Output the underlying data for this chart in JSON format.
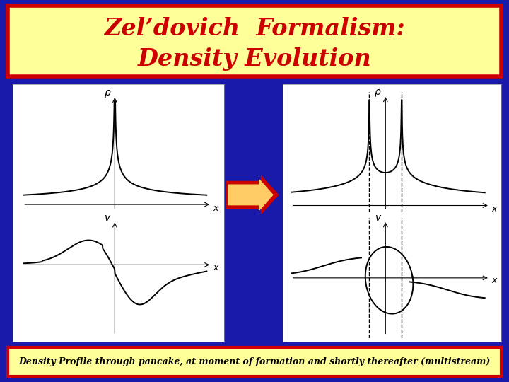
{
  "title_line1": "Zel’dovich  Formalism:",
  "title_line2": "Density Evolution",
  "caption": "Density Profile through pancake, at moment of formation and shortly thereafter (multistream)",
  "bg_outer": "#1a1aaa",
  "bg_title": "#ffff99",
  "bg_caption": "#ffff99",
  "title_color": "#cc0000",
  "caption_color": "#000000",
  "border_color": "#cc0000",
  "arrow_body_color": "#cc0000",
  "arrow_fill_color": "#ffcc66",
  "plot_bg": "#ffffff",
  "line_color": "#000000",
  "title_fontsize": 24,
  "caption_fontsize": 9
}
